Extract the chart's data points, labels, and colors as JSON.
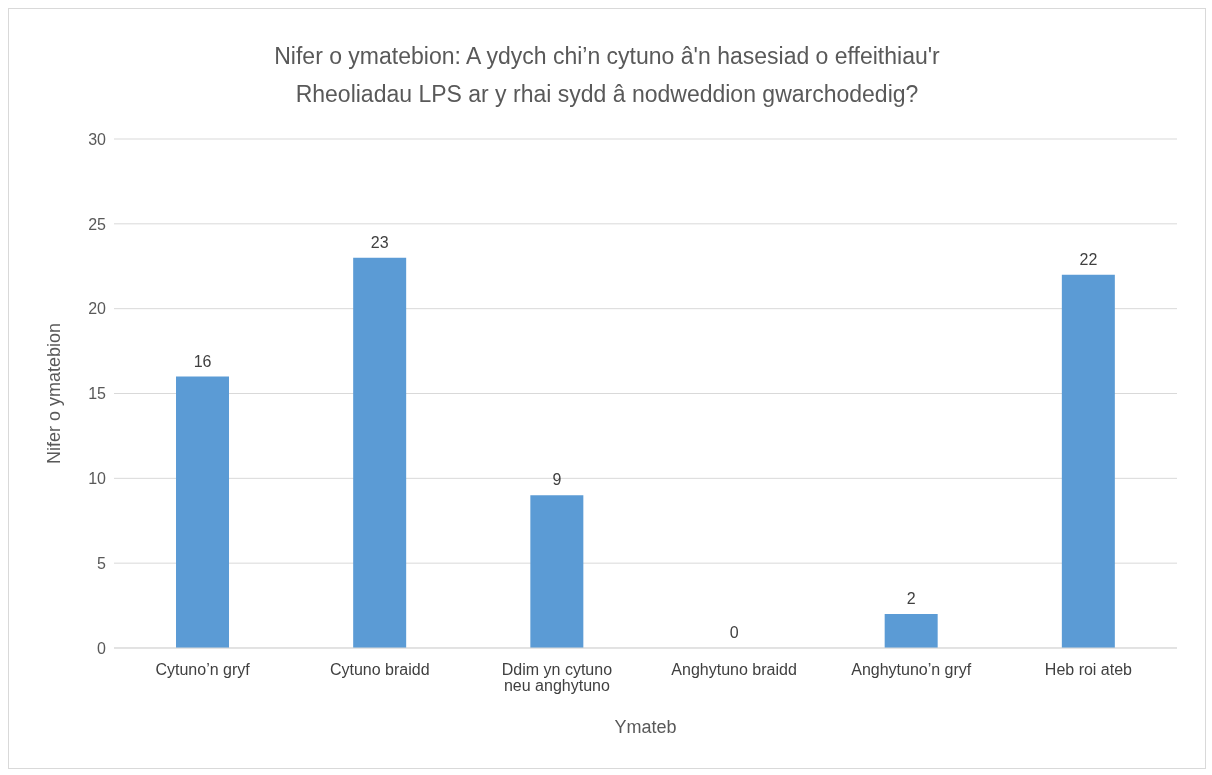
{
  "chart_data": {
    "type": "bar",
    "title": "Nifer o ymatebion: A ydych chi’n cytuno â'n hasesiad o effeithiau'r Rheoliadau LPS ar y rhai sydd â nodweddion gwarchodedig?",
    "xlabel": "Ymateb",
    "ylabel": "Nifer o ymatebion",
    "categories": [
      "Cytuno’n gryf",
      "Cytuno braidd",
      "Ddim yn cytuno neu anghytuno",
      "Anghytuno braidd",
      "Anghytuno’n gryf",
      "Heb roi ateb"
    ],
    "values": [
      16,
      23,
      9,
      0,
      2,
      22
    ],
    "color": "#5b9bd5",
    "ylim": [
      0,
      30
    ],
    "yticks": [
      0,
      5,
      10,
      15,
      20,
      25,
      30
    ],
    "grid": "y",
    "data_labels": true,
    "legend": false
  }
}
